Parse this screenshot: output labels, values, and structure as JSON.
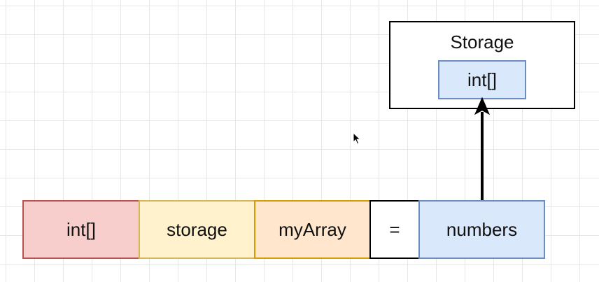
{
  "declaration": {
    "type_label": "int[]",
    "location_label": "storage",
    "name_label": "myArray",
    "operator_label": "=",
    "value_label": "numbers"
  },
  "storage": {
    "title": "Storage",
    "item_label": "int[]"
  },
  "colors": {
    "type_fill": "#f8cecc",
    "type_stroke": "#b85450",
    "location_fill": "#fff2cc",
    "location_stroke": "#d6b656",
    "name_fill": "#ffe6cc",
    "name_stroke": "#d79b00",
    "value_fill": "#dae8fc",
    "value_stroke": "#6c8ebf",
    "arrow": "#000000"
  },
  "icons": {
    "pointer": "mouse-pointer-icon"
  }
}
